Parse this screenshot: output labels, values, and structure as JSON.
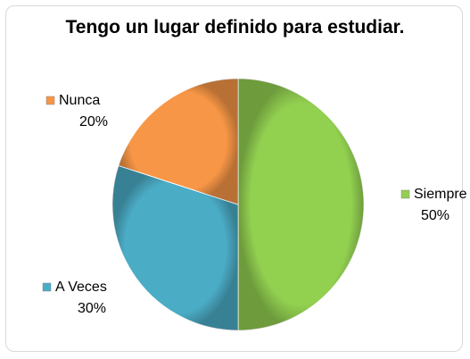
{
  "chart_data": {
    "type": "pie",
    "title": "Tengo un lugar definido para estudiar.",
    "categories": [
      "Siempre",
      "A Veces",
      "Nunca"
    ],
    "values": [
      50,
      30,
      20
    ],
    "value_labels": [
      "50%",
      "30%",
      "20%"
    ],
    "colors": [
      "#92d050",
      "#4bacc6",
      "#f79646"
    ]
  }
}
